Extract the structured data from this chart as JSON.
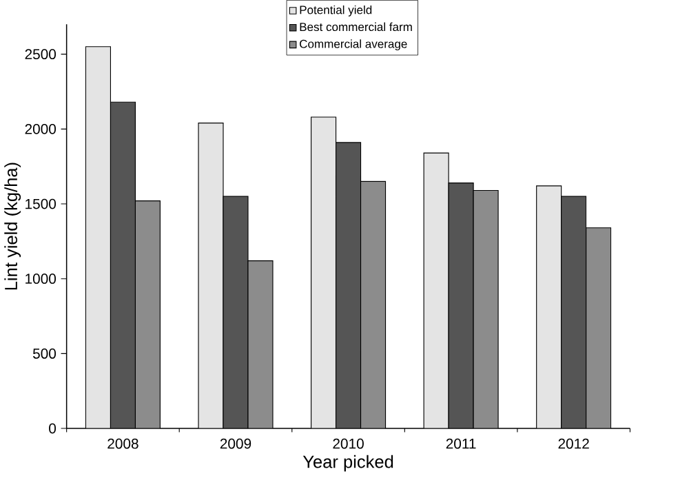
{
  "chart_data": {
    "type": "bar",
    "xlabel": "Year picked",
    "ylabel": "Lint yield (kg/ha)",
    "categories": [
      "2008",
      "2009",
      "2010",
      "2011",
      "2012"
    ],
    "series": [
      {
        "name": "Potential yield",
        "color": "#e4e4e4",
        "values": [
          2550,
          2040,
          2080,
          1840,
          1620
        ]
      },
      {
        "name": "Best commercial farm",
        "color": "#555555",
        "values": [
          2180,
          1550,
          1910,
          1640,
          1550
        ]
      },
      {
        "name": "Commercial average",
        "color": "#8c8c8c",
        "values": [
          1520,
          1120,
          1650,
          1590,
          1340
        ]
      }
    ],
    "ylim": [
      0,
      2700
    ],
    "yticks": [
      0,
      500,
      1000,
      1500,
      2000,
      2500
    ],
    "grid": false,
    "legend": "top"
  }
}
